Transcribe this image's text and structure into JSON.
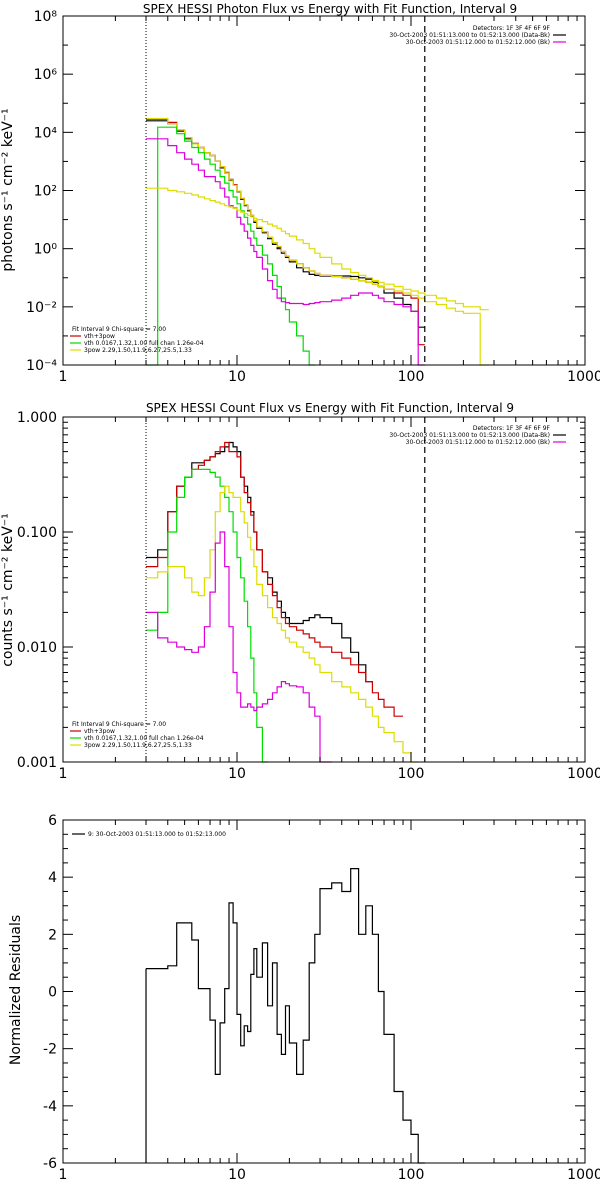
{
  "colors": {
    "data": "#000000",
    "total": "#cc0000",
    "thermal": "#00dd00",
    "thick": "#dddd00",
    "bkg": "#dd00dd",
    "axis": "#000000"
  },
  "chart_data": [
    {
      "type": "line",
      "title": "SPEX HESSI Photon Flux vs Energy with Fit Function, Interval 9",
      "ylabel": "photons s⁻¹ cm⁻² keV⁻¹",
      "xlabel": "",
      "xscale": "log",
      "yscale": "log",
      "xlim": [
        1,
        1000
      ],
      "ylim": [
        0.0001,
        100000000
      ],
      "xticks": [
        "1",
        "10",
        "100",
        "1000"
      ],
      "yticks": [
        "10⁻⁴",
        "10⁻²",
        "10⁰",
        "10²",
        "10⁴",
        "10⁶",
        "10⁸"
      ],
      "vlines": {
        "dotted": 3,
        "dashed": 120
      },
      "legend_top_right": [
        "Detectors: 1F 3F 4F 6F 9F",
        "30-Oct-2003 01:51:13.000 to 01:52:13.000 (Data-Bk)",
        "30-Oct-2003 01:51:12.000 to 01:52:12.000 (Bk)"
      ],
      "legend_bottom_left": [
        "Fit Interval 9    Chi-square = 7.00",
        "vth+3pow",
        "vth 0.0167,1.32,1.00  full chan 1.26e-04",
        "3pow 2.29,1.50,11.9,6.27,25.5,1.33"
      ],
      "edges": [
        3,
        3.5,
        4,
        4.5,
        5,
        5.5,
        6,
        6.5,
        7,
        7.5,
        8,
        8.5,
        9,
        9.5,
        10,
        10.5,
        11,
        11.5,
        12,
        12.5,
        13,
        14,
        15,
        16,
        17,
        18,
        19,
        20,
        22,
        24,
        26,
        28,
        30,
        35,
        40,
        45,
        50,
        55,
        60,
        65,
        70,
        80,
        90,
        100,
        110,
        120,
        140,
        160,
        180,
        200,
        250,
        280
      ],
      "series": [
        {
          "color": "#000000",
          "values": [
            25000,
            25000,
            20000,
            11000,
            6000,
            4000,
            3000,
            2000,
            1600,
            1000,
            600,
            400,
            220,
            150,
            90,
            50,
            30,
            20,
            13,
            8,
            5,
            3.5,
            2.2,
            1.4,
            1.0,
            0.7,
            0.5,
            0.35,
            0.22,
            0.16,
            0.13,
            0.12,
            0.115,
            0.115,
            0.115,
            0.11,
            0.1,
            0.09,
            0.07,
            0.05,
            0.03,
            0.02,
            0.012,
            0.007,
            0.002,
            null,
            null,
            null,
            null,
            null,
            null
          ]
        },
        {
          "color": "#cc0000",
          "values": [
            28000,
            28000,
            22000,
            12000,
            6500,
            4200,
            3000,
            2000,
            1600,
            1000,
            650,
            420,
            240,
            160,
            95,
            55,
            32,
            22,
            14,
            9,
            5.5,
            3.8,
            2.5,
            1.6,
            1.1,
            0.8,
            0.55,
            0.4,
            0.3,
            0.22,
            0.17,
            0.14,
            0.12,
            0.11,
            0.1,
            0.09,
            0.08,
            0.07,
            0.06,
            0.05,
            0.04,
            0.03,
            0.025,
            0.02,
            0.0005,
            null,
            null,
            null,
            null,
            null,
            null
          ]
        },
        {
          "color": "#dddd00",
          "values": [
            30000,
            30000,
            20000,
            12000,
            6500,
            4000,
            3000,
            2000,
            1600,
            1000,
            650,
            400,
            230,
            150,
            95,
            55,
            32,
            22,
            14,
            9,
            5.5,
            3.8,
            2.5,
            1.6,
            1.2,
            0.8,
            0.55,
            0.4,
            0.3,
            0.22,
            0.17,
            0.14,
            0.12,
            0.11,
            0.1,
            0.09,
            0.08,
            0.07,
            0.06,
            0.05,
            0.04,
            0.035,
            0.03,
            0.025,
            0.02,
            0.015,
            0.012,
            0.009,
            0.007,
            0.006,
            0.0001
          ]
        },
        {
          "color": "#00dd00",
          "values": [
            0.0001,
            15000,
            15000,
            9000,
            5000,
            3000,
            2000,
            1200,
            800,
            500,
            300,
            180,
            100,
            60,
            35,
            20,
            12,
            7,
            4,
            2.3,
            1.3,
            0.6,
            0.3,
            0.12,
            0.05,
            0.02,
            0.008,
            0.003,
            0.001,
            0.0003,
            0.0001,
            null,
            null,
            null,
            null,
            null,
            null,
            null,
            null,
            null,
            null,
            null,
            null,
            null,
            null,
            null,
            null,
            null,
            null,
            null,
            null
          ]
        },
        {
          "color": "#dd00dd",
          "values": [
            6000,
            6000,
            3500,
            2000,
            1200,
            800,
            500,
            300,
            300,
            200,
            120,
            60,
            30,
            25,
            12,
            7,
            4,
            2.3,
            1.3,
            0.8,
            0.5,
            0.2,
            0.08,
            0.04,
            0.02,
            0.015,
            0.014,
            0.013,
            0.013,
            0.012,
            0.013,
            0.014,
            0.015,
            0.017,
            0.02,
            0.025,
            0.03,
            0.03,
            0.025,
            0.02,
            0.015,
            0.012,
            0.01,
            0.007,
            0.0001,
            null,
            null,
            null,
            null,
            null,
            null
          ]
        },
        {
          "color": "#dddd00",
          "values": [
            120,
            120,
            100,
            90,
            80,
            70,
            60,
            52,
            45,
            40,
            35,
            30,
            27,
            24,
            21,
            18,
            16,
            14,
            12.5,
            11,
            10,
            8.5,
            7,
            6,
            5,
            4,
            3.3,
            2.7,
            2.0,
            1.5,
            1.0,
            0.7,
            0.5,
            0.3,
            0.2,
            0.15,
            0.12,
            0.1,
            0.08,
            0.07,
            0.06,
            0.05,
            0.04,
            0.035,
            0.03,
            0.025,
            0.02,
            0.016,
            0.013,
            0.01,
            0.008
          ]
        }
      ]
    },
    {
      "type": "line",
      "title": "SPEX HESSI Count Flux vs Energy with Fit Function, Interval 9",
      "ylabel": "counts s⁻¹ cm⁻² keV⁻¹",
      "xlabel": "",
      "xscale": "log",
      "yscale": "log",
      "xlim": [
        1,
        1000
      ],
      "ylim": [
        0.001,
        1
      ],
      "xticks": [
        "1",
        "10",
        "100",
        "1000"
      ],
      "yticks": [
        "0.001",
        "0.010",
        "0.100",
        "1.000"
      ],
      "vlines": {
        "dotted": 3,
        "dashed": 120
      },
      "legend_top_right": [
        "Detectors: 1F 3F 4F 6F 9F",
        "30-Oct-2003 01:51:13.000 to 01:52:13.000 (Data-Bk)",
        "30-Oct-2003 01:51:12.000 to 01:52:12.000 (Bk)"
      ],
      "legend_bottom_left": [
        "Fit Interval 9    Chi-square = 7.00",
        "vth+3pow",
        "vth 0.0167,1.32,1.00  full chan 1.26e-04",
        "3pow 2.29,1.50,11.9,6.27,25.5,1.33"
      ],
      "edges": [
        3,
        3.5,
        4,
        4.5,
        5,
        5.5,
        6,
        6.5,
        7,
        7.5,
        8,
        8.5,
        9,
        9.5,
        10,
        10.5,
        11,
        11.5,
        12,
        12.5,
        13,
        14,
        15,
        16,
        17,
        18,
        19,
        20,
        22,
        24,
        26,
        28,
        30,
        35,
        40,
        45,
        50,
        55,
        60,
        65,
        70,
        80,
        90,
        100,
        110,
        120,
        140,
        160,
        180,
        200,
        250,
        280
      ],
      "series": [
        {
          "color": "#000000",
          "values": [
            0.06,
            0.07,
            0.15,
            0.25,
            0.3,
            0.4,
            0.4,
            0.42,
            0.45,
            0.48,
            0.5,
            0.55,
            0.6,
            0.55,
            0.5,
            0.3,
            0.25,
            0.2,
            0.15,
            0.1,
            0.07,
            0.045,
            0.04,
            0.03,
            0.025,
            0.02,
            0.018,
            0.016,
            0.016,
            0.017,
            0.018,
            0.019,
            0.018,
            0.016,
            0.012,
            0.009,
            0.007,
            0.005,
            null,
            null,
            null,
            null,
            null,
            null,
            null,
            null,
            null,
            null,
            null,
            null,
            null
          ]
        },
        {
          "color": "#cc0000",
          "values": [
            0.05,
            0.06,
            0.15,
            0.25,
            0.3,
            0.35,
            0.38,
            0.42,
            0.45,
            0.5,
            0.55,
            0.6,
            0.5,
            0.5,
            0.45,
            0.3,
            0.22,
            0.18,
            0.14,
            0.1,
            0.07,
            0.045,
            0.035,
            0.028,
            0.022,
            0.018,
            0.016,
            0.015,
            0.014,
            0.013,
            0.012,
            0.011,
            0.01,
            0.009,
            0.008,
            0.007,
            0.006,
            0.005,
            0.004,
            0.0035,
            0.003,
            0.0025,
            null,
            null,
            null,
            null,
            null,
            null,
            null,
            null,
            null
          ]
        },
        {
          "color": "#00dd00",
          "values": [
            0.014,
            0.02,
            0.1,
            0.2,
            0.3,
            0.35,
            0.35,
            0.35,
            0.33,
            0.3,
            0.25,
            0.2,
            0.15,
            0.1,
            0.06,
            0.04,
            0.025,
            0.015,
            0.008,
            0.004,
            0.002,
            0.001,
            null,
            null,
            null,
            null,
            null,
            null,
            null,
            null,
            null,
            null,
            null,
            null,
            null,
            null,
            null,
            null,
            null,
            null,
            null,
            null,
            null,
            null,
            null,
            null,
            null,
            null,
            null,
            null,
            null
          ]
        },
        {
          "color": "#dddd00",
          "values": [
            0.04,
            0.045,
            0.05,
            0.05,
            0.04,
            0.03,
            0.028,
            0.04,
            0.07,
            0.15,
            0.22,
            0.25,
            0.22,
            0.2,
            0.2,
            0.15,
            0.12,
            0.09,
            0.07,
            0.05,
            0.035,
            0.028,
            0.022,
            0.018,
            0.016,
            0.014,
            0.012,
            0.011,
            0.01,
            0.009,
            0.008,
            0.007,
            0.006,
            0.005,
            0.0045,
            0.004,
            0.0035,
            0.003,
            0.0025,
            0.002,
            0.0018,
            0.0015,
            0.0012,
            0.001,
            null,
            null,
            null,
            null,
            null,
            null,
            null
          ]
        },
        {
          "color": "#dd00dd",
          "values": [
            0.02,
            0.012,
            0.011,
            0.01,
            0.0095,
            0.009,
            0.01,
            0.015,
            0.03,
            0.08,
            0.1,
            0.05,
            0.015,
            0.006,
            0.004,
            0.003,
            0.003,
            0.0032,
            0.003,
            0.0028,
            0.003,
            0.0032,
            0.0035,
            0.004,
            0.0045,
            0.005,
            0.0048,
            0.0046,
            0.0045,
            0.004,
            0.003,
            0.0025,
            0.001,
            null,
            null,
            null,
            null,
            null,
            null,
            null,
            null,
            null,
            null,
            null,
            null,
            null,
            null,
            null,
            null,
            null,
            null
          ]
        }
      ]
    },
    {
      "type": "line",
      "title": "",
      "ylabel": "Normalized Residuals",
      "xlabel": "",
      "xscale": "log",
      "yscale": "linear",
      "xlim": [
        1,
        1000
      ],
      "ylim": [
        -6,
        6
      ],
      "xticks": [
        "1",
        "10",
        "100",
        "1000"
      ],
      "yticks": [
        "-6",
        "-4",
        "-2",
        "0",
        "2",
        "4",
        "6"
      ],
      "legend_top_left": "9: 30-Oct-2003 01:51:13.000 to 01:52:13.000",
      "edges": [
        3,
        3.5,
        4,
        4.5,
        5,
        5.5,
        6,
        6.5,
        7,
        7.5,
        8,
        8.5,
        9,
        9.5,
        10,
        10.5,
        11,
        11.5,
        12,
        12.5,
        13,
        14,
        15,
        16,
        17,
        18,
        19,
        20,
        22,
        24,
        26,
        28,
        30,
        35,
        40,
        45,
        50,
        55,
        60,
        65,
        70,
        80,
        90,
        100,
        110,
        120
      ],
      "series": [
        {
          "color": "#000000",
          "values": [
            0.8,
            0.8,
            0.9,
            2.4,
            2.4,
            1.8,
            0.1,
            0.1,
            -1.0,
            -2.9,
            -1.1,
            0.1,
            3.1,
            2.4,
            -0.8,
            -1.9,
            -1.2,
            -1.4,
            0.6,
            1.5,
            0.5,
            1.7,
            -0.5,
            1.0,
            -1.5,
            -2.2,
            -0.5,
            -1.8,
            -2.9,
            -1.7,
            1.0,
            2.0,
            3.6,
            3.8,
            3.5,
            4.3,
            2.0,
            3.0,
            2.0,
            0.0,
            -1.5,
            -3.5,
            -4.5,
            -5.0,
            -6.0
          ]
        }
      ]
    }
  ]
}
